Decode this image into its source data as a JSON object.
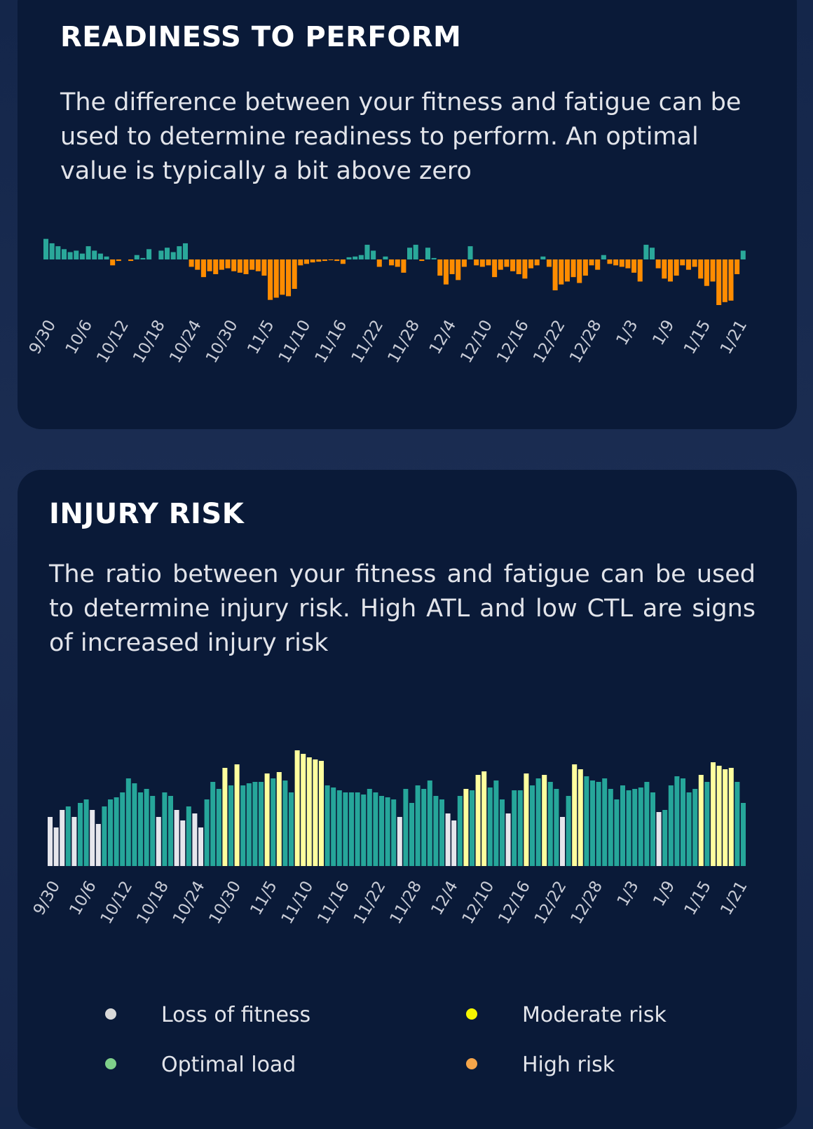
{
  "chart_data": [
    {
      "type": "bar",
      "title": "READINESS TO PERFORM",
      "description": "The difference between your fitness and fatigue can be used to determine readiness to perform. An optimal value is typically a bit above zero",
      "positive_color": "#2aa89a",
      "negative_color": "#ff8c00",
      "categories": [
        "9/30",
        null,
        null,
        null,
        null,
        null,
        "10/6",
        null,
        null,
        null,
        null,
        null,
        "10/12",
        null,
        null,
        null,
        null,
        null,
        "10/18",
        null,
        null,
        null,
        null,
        null,
        "10/24",
        null,
        null,
        null,
        null,
        null,
        "10/30",
        null,
        null,
        null,
        null,
        null,
        "11/5",
        null,
        null,
        null,
        null,
        null,
        "11/10",
        null,
        null,
        null,
        null,
        null,
        "11/16",
        null,
        null,
        null,
        null,
        null,
        "11/22",
        null,
        null,
        null,
        null,
        null,
        "11/28",
        null,
        null,
        null,
        null,
        null,
        "12/4",
        null,
        null,
        null,
        null,
        null,
        "12/10",
        null,
        null,
        null,
        null,
        null,
        "12/16",
        null,
        null,
        null,
        null,
        null,
        "12/22",
        null,
        null,
        null,
        null,
        null,
        "12/28",
        null,
        null,
        null,
        null,
        null,
        "1/3",
        null,
        null,
        null,
        null,
        null,
        "1/9",
        null,
        null,
        null,
        null,
        null,
        "1/15",
        null,
        null,
        null,
        null,
        null,
        "1/21",
        null
      ],
      "values": [
        28,
        22,
        18,
        14,
        10,
        12,
        8,
        18,
        12,
        8,
        4,
        -8,
        -2,
        0,
        -2,
        6,
        2,
        14,
        0,
        12,
        16,
        10,
        18,
        22,
        -10,
        -14,
        -24,
        -16,
        -20,
        -14,
        -12,
        -16,
        -18,
        -20,
        -14,
        -16,
        -22,
        -55,
        -52,
        -48,
        -50,
        -40,
        -8,
        -6,
        -4,
        -3,
        -2,
        -1,
        -2,
        -6,
        3,
        4,
        6,
        20,
        12,
        -10,
        4,
        -8,
        -10,
        -18,
        16,
        20,
        -2,
        16,
        2,
        -22,
        -34,
        -20,
        -28,
        -10,
        18,
        -8,
        -10,
        -8,
        -24,
        -14,
        -10,
        -16,
        -20,
        -26,
        -12,
        -8,
        4,
        -10,
        -42,
        -34,
        -30,
        -24,
        -32,
        -22,
        -8,
        -14,
        6,
        -6,
        -8,
        -10,
        -12,
        -18,
        -30,
        20,
        16,
        -12,
        -26,
        -30,
        -22,
        -8,
        -14,
        -10,
        -26,
        -36,
        -30,
        -62,
        -58,
        -56,
        -20,
        12
      ]
    },
    {
      "type": "bar",
      "title": "INJURY RISK",
      "description": "The ratio between your fitness and fatigue can be used to determine injury risk. High ATL and low CTL are signs of increased injury risk",
      "categories": [
        "9/30",
        null,
        null,
        null,
        null,
        null,
        "10/6",
        null,
        null,
        null,
        null,
        null,
        "10/12",
        null,
        null,
        null,
        null,
        null,
        "10/18",
        null,
        null,
        null,
        null,
        null,
        "10/24",
        null,
        null,
        null,
        null,
        null,
        "10/30",
        null,
        null,
        null,
        null,
        null,
        "11/5",
        null,
        null,
        null,
        null,
        null,
        "11/10",
        null,
        null,
        null,
        null,
        null,
        "11/16",
        null,
        null,
        null,
        null,
        null,
        "11/22",
        null,
        null,
        null,
        null,
        null,
        "11/28",
        null,
        null,
        null,
        null,
        null,
        "12/4",
        null,
        null,
        null,
        null,
        null,
        "12/10",
        null,
        null,
        null,
        null,
        null,
        "12/16",
        null,
        null,
        null,
        null,
        null,
        "12/22",
        null,
        null,
        null,
        null,
        null,
        "12/28",
        null,
        null,
        null,
        null,
        null,
        "1/3",
        null,
        null,
        null,
        null,
        null,
        "1/9",
        null,
        null,
        null,
        null,
        null,
        "1/15",
        null,
        null,
        null,
        null,
        null,
        "1/21",
        null
      ],
      "values": [
        70,
        55,
        80,
        85,
        70,
        90,
        95,
        80,
        60,
        85,
        95,
        98,
        105,
        125,
        118,
        105,
        110,
        100,
        70,
        105,
        100,
        80,
        65,
        85,
        75,
        55,
        95,
        120,
        110,
        140,
        115,
        145,
        115,
        118,
        120,
        120,
        132,
        125,
        134,
        122,
        105,
        165,
        160,
        155,
        152,
        150,
        115,
        112,
        108,
        105,
        105,
        105,
        102,
        110,
        105,
        100,
        98,
        95,
        70,
        110,
        90,
        115,
        110,
        122,
        100,
        95,
        75,
        65,
        100,
        110,
        108,
        130,
        135,
        112,
        122,
        95,
        75,
        108,
        108,
        132,
        115,
        125,
        130,
        120,
        110,
        70,
        100,
        145,
        138,
        128,
        122,
        120,
        125,
        110,
        95,
        115,
        108,
        110,
        112,
        120,
        105,
        77,
        80,
        115,
        128,
        125,
        105,
        110,
        130,
        120,
        148,
        143,
        138,
        140,
        120,
        90
      ],
      "levels": [
        0,
        0,
        0,
        1,
        0,
        1,
        1,
        0,
        0,
        1,
        1,
        1,
        1,
        1,
        1,
        1,
        1,
        1,
        0,
        1,
        1,
        0,
        0,
        1,
        0,
        0,
        1,
        1,
        1,
        2,
        1,
        2,
        1,
        1,
        1,
        1,
        2,
        1,
        2,
        1,
        1,
        2,
        2,
        2,
        2,
        2,
        1,
        1,
        1,
        1,
        1,
        1,
        1,
        1,
        1,
        1,
        1,
        1,
        0,
        1,
        1,
        1,
        1,
        1,
        1,
        1,
        0,
        0,
        1,
        2,
        1,
        2,
        2,
        1,
        1,
        1,
        0,
        1,
        1,
        2,
        1,
        1,
        2,
        1,
        1,
        0,
        1,
        2,
        2,
        1,
        1,
        1,
        1,
        1,
        1,
        1,
        1,
        1,
        1,
        1,
        1,
        0,
        1,
        1,
        1,
        1,
        1,
        1,
        2,
        1,
        2,
        2,
        2,
        2,
        1,
        1
      ],
      "legend": [
        {
          "name": "Loss of fitness",
          "color": "#e6e6ec",
          "marker_color": "#d9d9d9"
        },
        {
          "name": "Optimal load",
          "color": "#26a69a",
          "marker_color": "#7fd08a"
        },
        {
          "name": "Moderate risk",
          "color": "#ffff9e",
          "marker_color": "#f5f500"
        },
        {
          "name": "High risk",
          "color": "#ff8c00",
          "marker_color": "#f5a54a"
        }
      ]
    }
  ]
}
